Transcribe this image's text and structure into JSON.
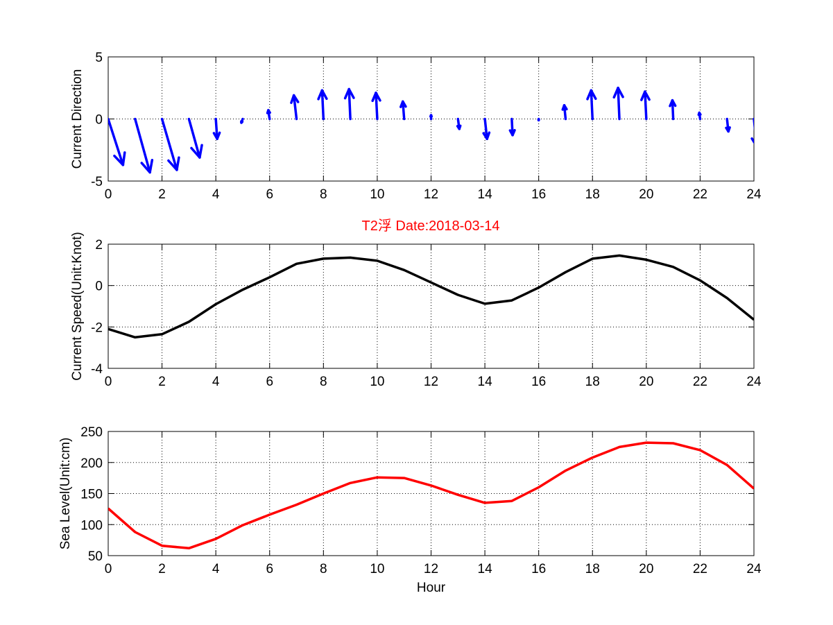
{
  "figure": {
    "title": "T2浮    Date:2018-03-14",
    "title_color": "#ff0000"
  },
  "chart_data": [
    {
      "type": "quiver",
      "ylabel": "Current Direction",
      "xlabel": "",
      "xlim": [
        0,
        24
      ],
      "ylim": [
        -5,
        5
      ],
      "xticks": [
        0,
        2,
        4,
        6,
        8,
        10,
        12,
        14,
        16,
        18,
        20,
        22,
        24
      ],
      "yticks": [
        -5,
        0,
        5
      ],
      "grid": true,
      "color": "#0000ff",
      "x": [
        0,
        1,
        2,
        3,
        4,
        5,
        6,
        7,
        8,
        9,
        10,
        11,
        12,
        13,
        14,
        15,
        16,
        17,
        18,
        19,
        20,
        21,
        22,
        23,
        24
      ],
      "u": [
        0.55,
        0.55,
        0.55,
        0.4,
        0.05,
        -0.05,
        -0.05,
        -0.1,
        -0.05,
        -0.05,
        -0.05,
        -0.05,
        0.0,
        0.05,
        0.08,
        0.03,
        0.0,
        -0.05,
        -0.05,
        -0.05,
        -0.05,
        -0.03,
        -0.03,
        0.05,
        0.1
      ],
      "v": [
        -3.7,
        -4.3,
        -4.1,
        -3.1,
        -1.6,
        -0.3,
        0.7,
        1.9,
        2.3,
        2.4,
        2.1,
        1.4,
        0.3,
        -0.8,
        -1.6,
        -1.3,
        -0.1,
        1.1,
        2.3,
        2.5,
        2.2,
        1.5,
        0.5,
        -1.0,
        -2.2
      ]
    },
    {
      "type": "line",
      "ylabel": "Current Speed(Unit:Knot)",
      "xlabel": "",
      "xlim": [
        0,
        24
      ],
      "ylim": [
        -4,
        2
      ],
      "xticks": [
        0,
        2,
        4,
        6,
        8,
        10,
        12,
        14,
        16,
        18,
        20,
        22,
        24
      ],
      "yticks": [
        -4,
        -2,
        0,
        2
      ],
      "grid": true,
      "series": [
        {
          "color": "#000000",
          "x": [
            0,
            1,
            2,
            3,
            4,
            5,
            6,
            7,
            8,
            9,
            10,
            11,
            12,
            13,
            14,
            15,
            16,
            17,
            18,
            19,
            20,
            21,
            22,
            23,
            24
          ],
          "values": [
            -2.1,
            -2.5,
            -2.35,
            -1.75,
            -0.9,
            -0.2,
            0.4,
            1.05,
            1.3,
            1.35,
            1.2,
            0.75,
            0.15,
            -0.45,
            -0.88,
            -0.72,
            -0.1,
            0.65,
            1.3,
            1.45,
            1.25,
            0.9,
            0.25,
            -0.6,
            -1.65
          ]
        }
      ]
    },
    {
      "type": "line",
      "ylabel": "Sea Level(Unit:cm)",
      "xlabel": "Hour",
      "xlim": [
        0,
        24
      ],
      "ylim": [
        50,
        250
      ],
      "xticks": [
        0,
        2,
        4,
        6,
        8,
        10,
        12,
        14,
        16,
        18,
        20,
        22,
        24
      ],
      "yticks": [
        50,
        100,
        150,
        200,
        250
      ],
      "grid": true,
      "series": [
        {
          "color": "#ff0000",
          "x": [
            0,
            1,
            2,
            3,
            4,
            5,
            6,
            7,
            8,
            9,
            10,
            11,
            12,
            13,
            14,
            15,
            16,
            17,
            18,
            19,
            20,
            21,
            22,
            23,
            24
          ],
          "values": [
            126,
            88,
            66,
            62,
            77,
            99,
            116,
            132,
            150,
            167,
            176,
            175,
            163,
            148,
            135,
            138,
            160,
            187,
            208,
            225,
            232,
            231,
            220,
            196,
            158
          ]
        }
      ]
    }
  ]
}
